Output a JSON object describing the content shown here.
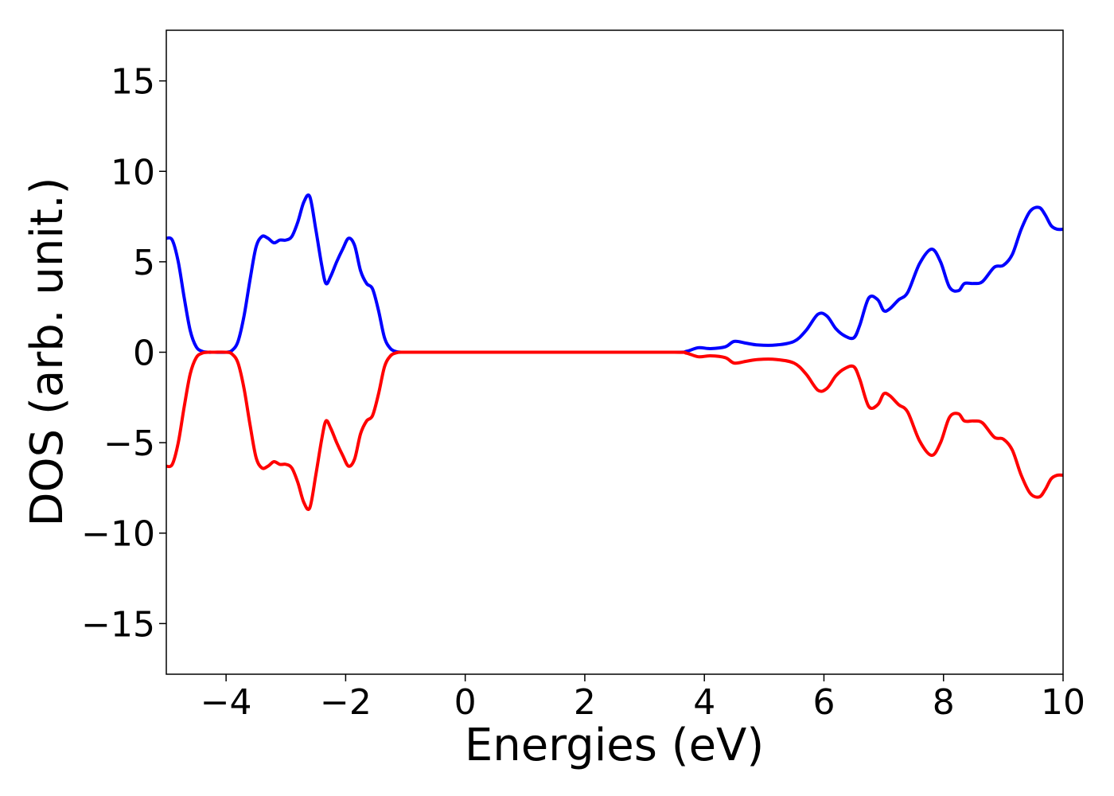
{
  "chart_data": {
    "type": "line",
    "title": "",
    "xlabel": "Energies (eV)",
    "ylabel": "DOS (arb. unit.)",
    "xlim": [
      -5,
      10
    ],
    "ylim": [
      -17.8,
      17.8
    ],
    "x_ticks": [
      -4,
      -2,
      0,
      2,
      4,
      6,
      8,
      10
    ],
    "x_tick_labels": [
      "−4",
      "−2",
      "0",
      "2",
      "4",
      "6",
      "8",
      "10"
    ],
    "y_ticks": [
      15,
      10,
      5,
      0,
      -5,
      -10,
      -15
    ],
    "y_tick_labels": [
      "15",
      "10",
      "5",
      "0",
      "−5",
      "−10",
      "−15"
    ],
    "grid": false,
    "legend": "none",
    "series": [
      {
        "color": "#0000ff",
        "x": [
          -5.0,
          -4.9,
          -4.8,
          -4.7,
          -4.6,
          -4.5,
          -4.4,
          -4.3,
          -4.2,
          -4.0,
          -3.9,
          -3.8,
          -3.7,
          -3.6,
          -3.5,
          -3.4,
          -3.3,
          -3.2,
          -3.1,
          -3.0,
          -2.9,
          -2.8,
          -2.7,
          -2.6,
          -2.5,
          -2.4,
          -2.33,
          -2.25,
          -2.15,
          -2.05,
          -1.95,
          -1.85,
          -1.75,
          -1.65,
          -1.55,
          -1.45,
          -1.35,
          -1.25,
          -1.15,
          -1.05,
          -0.95,
          -0.85,
          -0.75,
          -0.65,
          -0.55,
          -0.4,
          0.0,
          2.0,
          3.5,
          3.7,
          3.9,
          4.1,
          4.35,
          4.5,
          4.7,
          4.9,
          5.2,
          5.5,
          5.7,
          5.9,
          6.05,
          6.2,
          6.35,
          6.5,
          6.6,
          6.75,
          6.9,
          7.0,
          7.1,
          7.25,
          7.4,
          7.6,
          7.8,
          7.95,
          8.1,
          8.25,
          8.35,
          8.5,
          8.65,
          8.85,
          9.0,
          9.15,
          9.3,
          9.45,
          9.6,
          9.7,
          9.8,
          9.9,
          10.0
        ],
        "values": [
          6.3,
          6.2,
          5.0,
          3.0,
          1.2,
          0.3,
          0.05,
          0.0,
          0.0,
          0.0,
          0.1,
          0.6,
          2.0,
          4.0,
          5.8,
          6.4,
          6.3,
          6.05,
          6.2,
          6.2,
          6.4,
          7.2,
          8.3,
          8.6,
          6.8,
          4.8,
          3.8,
          4.2,
          5.0,
          5.7,
          6.3,
          5.9,
          4.5,
          3.8,
          3.5,
          2.3,
          0.8,
          0.2,
          0.03,
          0.0,
          0.0,
          0.0,
          0.0,
          0.0,
          0.0,
          0.0,
          0.0,
          0.0,
          0.0,
          0.05,
          0.25,
          0.2,
          0.3,
          0.6,
          0.5,
          0.4,
          0.4,
          0.6,
          1.2,
          2.1,
          2.0,
          1.3,
          0.9,
          0.8,
          1.5,
          3.0,
          2.9,
          2.3,
          2.4,
          2.9,
          3.3,
          4.9,
          5.7,
          5.0,
          3.6,
          3.4,
          3.8,
          3.8,
          3.9,
          4.7,
          4.8,
          5.4,
          6.8,
          7.8,
          8.0,
          7.6,
          7.0,
          6.8,
          6.8
        ]
      },
      {
        "color": "#ff0000",
        "x": [
          -5.0,
          -4.9,
          -4.8,
          -4.7,
          -4.6,
          -4.5,
          -4.4,
          -4.3,
          -4.2,
          -4.0,
          -3.9,
          -3.8,
          -3.7,
          -3.6,
          -3.5,
          -3.4,
          -3.3,
          -3.2,
          -3.1,
          -3.0,
          -2.9,
          -2.8,
          -2.7,
          -2.6,
          -2.5,
          -2.4,
          -2.33,
          -2.25,
          -2.15,
          -2.05,
          -1.95,
          -1.85,
          -1.75,
          -1.65,
          -1.55,
          -1.45,
          -1.35,
          -1.25,
          -1.15,
          -1.05,
          -0.95,
          -0.85,
          -0.75,
          -0.65,
          -0.55,
          -0.4,
          0.0,
          2.0,
          3.5,
          3.7,
          3.9,
          4.1,
          4.35,
          4.5,
          4.7,
          4.9,
          5.2,
          5.5,
          5.7,
          5.9,
          6.05,
          6.2,
          6.35,
          6.5,
          6.6,
          6.75,
          6.9,
          7.0,
          7.1,
          7.25,
          7.4,
          7.6,
          7.8,
          7.95,
          8.1,
          8.25,
          8.35,
          8.5,
          8.65,
          8.85,
          9.0,
          9.15,
          9.3,
          9.45,
          9.6,
          9.7,
          9.8,
          9.9,
          10.0
        ],
        "values": [
          -6.3,
          -6.2,
          -5.0,
          -3.0,
          -1.2,
          -0.3,
          -0.05,
          0.0,
          0.0,
          0.0,
          -0.1,
          -0.6,
          -2.0,
          -4.0,
          -5.8,
          -6.4,
          -6.3,
          -6.05,
          -6.2,
          -6.2,
          -6.4,
          -7.2,
          -8.3,
          -8.6,
          -6.8,
          -4.8,
          -3.8,
          -4.2,
          -5.0,
          -5.7,
          -6.3,
          -5.9,
          -4.5,
          -3.8,
          -3.5,
          -2.3,
          -0.8,
          -0.2,
          -0.03,
          0.0,
          0.0,
          0.0,
          0.0,
          0.0,
          0.0,
          0.0,
          0.0,
          0.0,
          0.0,
          -0.05,
          -0.25,
          -0.2,
          -0.3,
          -0.6,
          -0.5,
          -0.4,
          -0.4,
          -0.6,
          -1.2,
          -2.1,
          -2.0,
          -1.3,
          -0.9,
          -0.8,
          -1.5,
          -3.0,
          -2.9,
          -2.3,
          -2.4,
          -2.9,
          -3.3,
          -4.9,
          -5.7,
          -5.0,
          -3.6,
          -3.4,
          -3.8,
          -3.8,
          -3.9,
          -4.7,
          -4.8,
          -5.4,
          -6.8,
          -7.8,
          -8.0,
          -7.6,
          -7.0,
          -6.8,
          -6.8
        ]
      }
    ]
  }
}
